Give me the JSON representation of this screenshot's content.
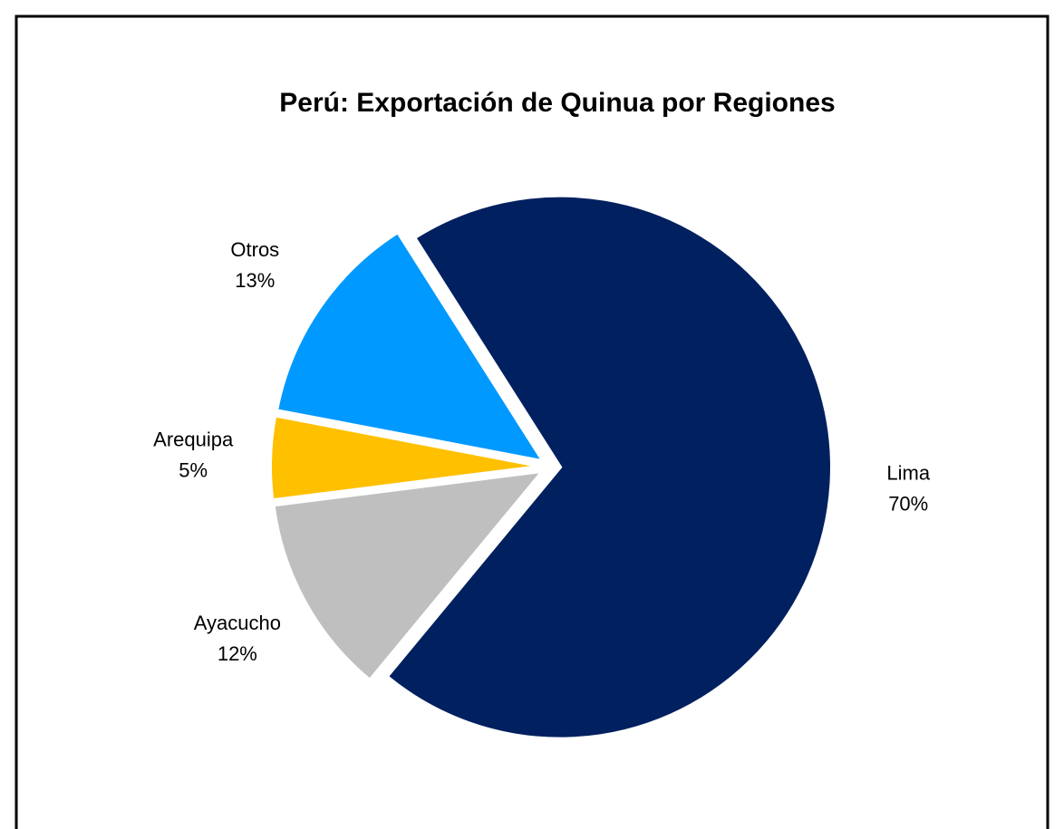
{
  "chart_data": {
    "type": "pie",
    "title": "Perú: Exportación de Quinua por Regiones",
    "categories": [
      "Lima",
      "Ayacucho",
      "Arequipa",
      "Otros"
    ],
    "values": [
      70,
      12,
      5,
      13
    ],
    "value_labels": [
      "70%",
      "12%",
      "5%",
      "13%"
    ],
    "colors": [
      "#002060",
      "#bfbfbf",
      "#ffc000",
      "#0099ff"
    ]
  }
}
